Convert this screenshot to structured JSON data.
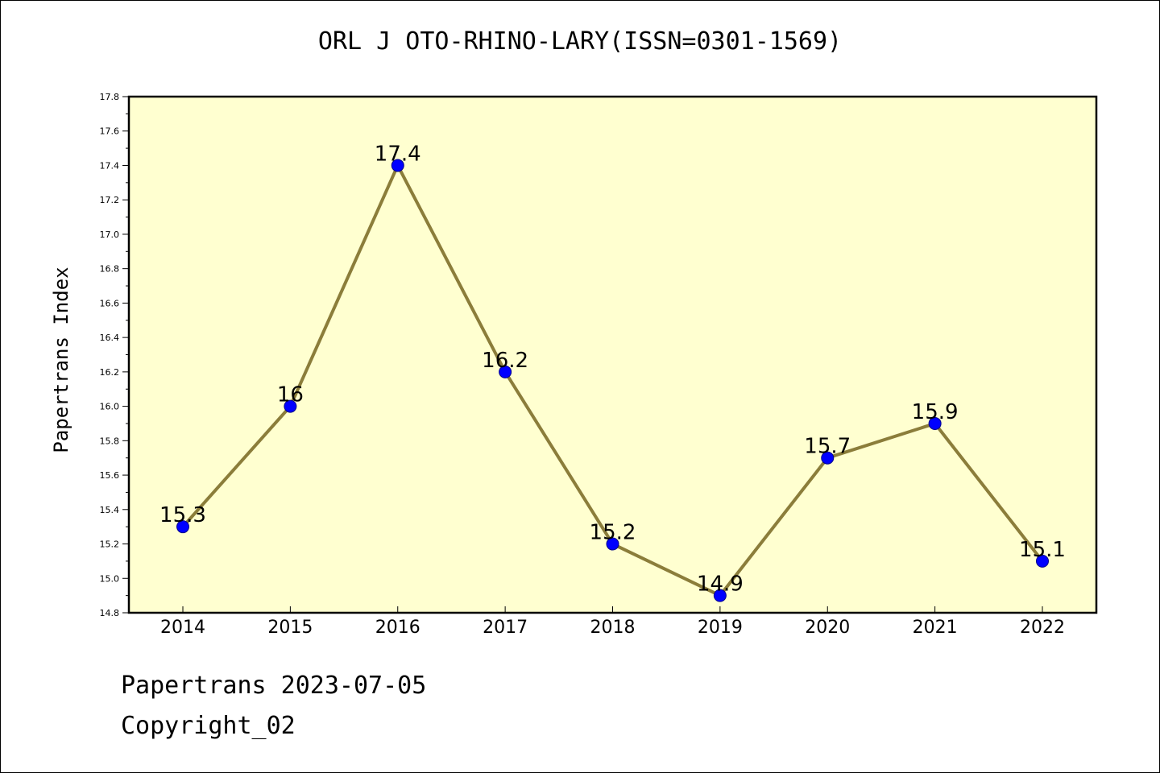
{
  "chart_data": {
    "type": "line",
    "title": "ORL J OTO-RHINO-LARY(ISSN=0301-1569)",
    "xlabel": "",
    "ylabel": "Papertrans Index",
    "categories": [
      "2014",
      "2015",
      "2016",
      "2017",
      "2018",
      "2019",
      "2020",
      "2021",
      "2022"
    ],
    "series": [
      {
        "name": "Papertrans Index",
        "values": [
          15.3,
          16.0,
          17.4,
          16.2,
          15.2,
          14.9,
          15.7,
          15.9,
          15.1
        ],
        "labels": [
          "15.3",
          "16",
          "17.4",
          "16.2",
          "15.2",
          "14.9",
          "15.7",
          "15.9",
          "15.1"
        ]
      }
    ],
    "ylim": [
      14.8,
      17.8
    ],
    "yticks": [
      "14.8",
      "15.0",
      "15.2",
      "15.4",
      "15.6",
      "15.8",
      "16.0",
      "16.2",
      "16.4",
      "16.6",
      "16.8",
      "17.0",
      "17.2",
      "17.4",
      "17.6",
      "17.8"
    ],
    "grid": false,
    "colors": {
      "plot_background": "#ffffd0",
      "line": "#8b7d3a",
      "marker": "#0000ff"
    }
  },
  "footer": {
    "date_line": "Papertrans 2023-07-05",
    "copyright": "Copyright_02"
  }
}
